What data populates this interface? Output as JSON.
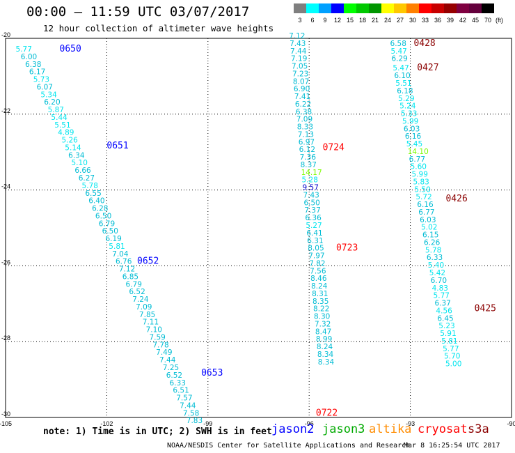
{
  "title": "00:00 – 11:59 UTC 03/07/2017",
  "subtitle": "12 hour collection of altimeter wave heights",
  "legend": {
    "swatches": [
      {
        "label": "3",
        "color": "#7f7f7f"
      },
      {
        "label": "6",
        "color": "#00ffff"
      },
      {
        "label": "9",
        "color": "#00a0ff"
      },
      {
        "label": "12",
        "color": "#0000ff"
      },
      {
        "label": "15",
        "color": "#00ff00"
      },
      {
        "label": "18",
        "color": "#00c800"
      },
      {
        "label": "21",
        "color": "#009600"
      },
      {
        "label": "24",
        "color": "#ffff00"
      },
      {
        "label": "27",
        "color": "#ffc800"
      },
      {
        "label": "30",
        "color": "#ff8000"
      },
      {
        "label": "33",
        "color": "#ff0000"
      },
      {
        "label": "36",
        "color": "#c80000"
      },
      {
        "label": "39",
        "color": "#960000"
      },
      {
        "label": "42",
        "color": "#7f0040"
      },
      {
        "label": "45",
        "color": "#64003c"
      },
      {
        "label": "70",
        "color": "#000000"
      }
    ],
    "unit": "(ft)"
  },
  "axes": {
    "x_ticks": [
      "-105",
      "-102",
      "-99",
      "-96",
      "-93",
      "-90"
    ],
    "y_ticks": [
      "-20",
      "-22",
      "-24",
      "-26",
      "-28",
      "-30"
    ]
  },
  "tracks": [
    {
      "satellite": "jason2",
      "labels": [
        {
          "lon": -103.4,
          "lat": -20.35,
          "text": "0650",
          "color": "#0000ff"
        },
        {
          "lon": -102.0,
          "lat": -22.9,
          "text": "0651",
          "color": "#0000ff"
        },
        {
          "lon": -101.1,
          "lat": -25.95,
          "text": "0652",
          "color": "#0000ff"
        },
        {
          "lon": -99.2,
          "lat": -28.9,
          "text": "0653",
          "color": "#0000ff"
        }
      ],
      "points": [
        [
          "5.77",
          -104.7,
          -20.35
        ],
        [
          "6.00",
          -104.55,
          -20.55
        ],
        [
          "6.38",
          -104.42,
          -20.75
        ],
        [
          "6.17",
          -104.3,
          -20.95
        ],
        [
          "5.73",
          -104.18,
          -21.15
        ],
        [
          "6.07",
          -104.08,
          -21.35
        ],
        [
          "5.34",
          -103.96,
          -21.55
        ],
        [
          "6.20",
          -103.86,
          -21.75
        ],
        [
          "5.87",
          -103.75,
          -21.95
        ],
        [
          "5.44",
          -103.65,
          -22.15
        ],
        [
          "5.51",
          -103.55,
          -22.35
        ],
        [
          "4.89",
          -103.45,
          -22.55
        ],
        [
          "5.26",
          -103.34,
          -22.75
        ],
        [
          "5.14",
          -103.24,
          -22.95
        ],
        [
          "6.34",
          -103.14,
          -23.15
        ],
        [
          "5.10",
          -103.05,
          -23.35
        ],
        [
          "6.66",
          -102.95,
          -23.55
        ],
        [
          "6.27",
          -102.84,
          -23.75
        ],
        [
          "5.78",
          -102.74,
          -23.95
        ],
        [
          "6.55",
          -102.64,
          -24.15
        ],
        [
          "6.40",
          -102.54,
          -24.35
        ],
        [
          "6.28",
          -102.44,
          -24.55
        ],
        [
          "6.50",
          -102.34,
          -24.75
        ],
        [
          "6.79",
          -102.24,
          -24.95
        ],
        [
          "6.50",
          -102.14,
          -25.15
        ],
        [
          "6.19",
          -102.04,
          -25.35
        ],
        [
          "5.81",
          -101.94,
          -25.55
        ],
        [
          "7.04",
          -101.84,
          -25.75
        ],
        [
          "6.76",
          -101.74,
          -25.95
        ],
        [
          "7.12",
          -101.64,
          -26.15
        ],
        [
          "6.85",
          -101.54,
          -26.35
        ],
        [
          "6.79",
          -101.44,
          -26.55
        ],
        [
          "6.52",
          -101.34,
          -26.75
        ],
        [
          "7.24",
          -101.24,
          -26.95
        ],
        [
          "7.09",
          -101.14,
          -27.15
        ],
        [
          "7.85",
          -101.04,
          -27.35
        ],
        [
          "7.11",
          -100.94,
          -27.55
        ],
        [
          "7.10",
          -100.84,
          -27.75
        ],
        [
          "7.59",
          -100.74,
          -27.95
        ],
        [
          "7.78",
          -100.64,
          -28.15
        ],
        [
          "7.49",
          -100.54,
          -28.35
        ],
        [
          "7.44",
          -100.44,
          -28.55
        ],
        [
          "7.25",
          -100.34,
          -28.75
        ],
        [
          "6.52",
          -100.24,
          -28.95
        ],
        [
          "6.33",
          -100.14,
          -29.15
        ],
        [
          "6.51",
          -100.04,
          -29.35
        ],
        [
          "7.57",
          -99.94,
          -29.55
        ],
        [
          "7.44",
          -99.84,
          -29.75
        ],
        [
          "7.58",
          -99.74,
          -29.95
        ],
        [
          "7.83",
          -99.64,
          -30.15
        ]
      ]
    },
    {
      "satellite": "jason2b",
      "labels": [
        {
          "lon": -95.6,
          "lat": -22.95,
          "text": "0724",
          "color": "#ff0000"
        },
        {
          "lon": -95.2,
          "lat": -25.6,
          "text": "0723",
          "color": "#ff0000"
        },
        {
          "lon": -95.8,
          "lat": -29.95,
          "text": "0722",
          "color": "#ff0000"
        }
      ],
      "points": [
        [
          "7.12",
          -96.6,
          -20.0
        ],
        [
          "7.43",
          -96.58,
          -20.2
        ],
        [
          "7.44",
          -96.56,
          -20.4
        ],
        [
          "7.19",
          -96.54,
          -20.6
        ],
        [
          "7.05",
          -96.52,
          -20.8
        ],
        [
          "7.23",
          -96.5,
          -21.0
        ],
        [
          "8.07",
          -96.48,
          -21.2
        ],
        [
          "6.90",
          -96.46,
          -21.4
        ],
        [
          "7.41",
          -96.44,
          -21.6
        ],
        [
          "6.22",
          -96.42,
          -21.8
        ],
        [
          "6.38",
          -96.4,
          -22.0
        ],
        [
          "7.09",
          -96.38,
          -22.2
        ],
        [
          "8.33",
          -96.36,
          -22.4
        ],
        [
          "7.13",
          -96.34,
          -22.6
        ],
        [
          "6.97",
          -96.32,
          -22.8
        ],
        [
          "6.12",
          -96.3,
          -23.0
        ],
        [
          "7.36",
          -96.28,
          -23.2
        ],
        [
          "8.37",
          -96.26,
          -23.4
        ],
        [
          "14.17",
          -96.24,
          -23.6
        ],
        [
          "5.28",
          -96.22,
          -23.8
        ],
        [
          "9.57",
          -96.2,
          -24.0
        ],
        [
          "7.43",
          -96.18,
          -24.2
        ],
        [
          "6.50",
          -96.16,
          -24.4
        ],
        [
          "7.37",
          -96.14,
          -24.6
        ],
        [
          "6.36",
          -96.12,
          -24.8
        ],
        [
          "5.27",
          -96.1,
          -25.0
        ],
        [
          "6.41",
          -96.08,
          -25.2
        ],
        [
          "6.31",
          -96.06,
          -25.4
        ],
        [
          "8.05",
          -96.04,
          -25.6
        ],
        [
          "7.97",
          -96.02,
          -25.8
        ],
        [
          "7.82",
          -96.0,
          -26.0
        ],
        [
          "7.56",
          -95.98,
          -26.2
        ],
        [
          "8.46",
          -95.96,
          -26.4
        ],
        [
          "8.24",
          -95.94,
          -26.6
        ],
        [
          "8.31",
          -95.92,
          -26.8
        ],
        [
          "8.35",
          -95.9,
          -27.0
        ],
        [
          "8.22",
          -95.88,
          -27.2
        ],
        [
          "8.30",
          -95.86,
          -27.4
        ],
        [
          "7.32",
          -95.84,
          -27.6
        ],
        [
          "8.47",
          -95.82,
          -27.8
        ],
        [
          "8.99",
          -95.8,
          -28.0
        ],
        [
          "8.24",
          -95.78,
          -28.2
        ],
        [
          "8.34",
          -95.76,
          -28.4
        ],
        [
          "8.34",
          -95.74,
          -28.6
        ]
      ]
    },
    {
      "satellite": "cryosat",
      "labels": [
        {
          "lon": -92.9,
          "lat": -20.2,
          "text": "0428",
          "color": "#8b0000"
        },
        {
          "lon": -92.8,
          "lat": -20.85,
          "text": "0427",
          "color": "#8b0000"
        },
        {
          "lon": -91.95,
          "lat": -24.3,
          "text": "0426",
          "color": "#8b0000"
        },
        {
          "lon": -91.1,
          "lat": -27.2,
          "text": "0425",
          "color": "#8b0000"
        }
      ],
      "points": [
        [
          "6.58",
          -93.6,
          -20.2
        ],
        [
          "5.47",
          -93.58,
          -20.4
        ],
        [
          "6.29",
          -93.56,
          -20.6
        ],
        [
          "5.47",
          -93.52,
          -20.85
        ],
        [
          "6.10",
          -93.48,
          -21.05
        ],
        [
          "5.51",
          -93.44,
          -21.25
        ],
        [
          "6.18",
          -93.4,
          -21.45
        ],
        [
          "5.29",
          -93.36,
          -21.65
        ],
        [
          "5.24",
          -93.32,
          -21.85
        ],
        [
          "5.33",
          -93.28,
          -22.05
        ],
        [
          "5.99",
          -93.24,
          -22.25
        ],
        [
          "6.03",
          -93.2,
          -22.45
        ],
        [
          "6.16",
          -93.16,
          -22.65
        ],
        [
          "5.45",
          -93.12,
          -22.85
        ],
        [
          "14.10",
          -93.08,
          -23.05
        ],
        [
          "6.77",
          -93.04,
          -23.25
        ],
        [
          "5.60",
          -93.0,
          -23.45
        ],
        [
          "5.99",
          -92.96,
          -23.65
        ],
        [
          "5.83",
          -92.92,
          -23.85
        ],
        [
          "5.50",
          -92.88,
          -24.05
        ],
        [
          "5.72",
          -92.84,
          -24.25
        ],
        [
          "6.16",
          -92.8,
          -24.45
        ],
        [
          "6.77",
          -92.76,
          -24.65
        ],
        [
          "6.03",
          -92.72,
          -24.85
        ],
        [
          "5.02",
          -92.68,
          -25.05
        ],
        [
          "6.15",
          -92.64,
          -25.25
        ],
        [
          "6.26",
          -92.6,
          -25.45
        ],
        [
          "5.78",
          -92.56,
          -25.65
        ],
        [
          "6.33",
          -92.52,
          -25.85
        ],
        [
          "5.40",
          -92.48,
          -26.05
        ],
        [
          "5.42",
          -92.44,
          -26.25
        ],
        [
          "6.70",
          -92.4,
          -26.45
        ],
        [
          "4.83",
          -92.36,
          -26.65
        ],
        [
          "5.77",
          -92.32,
          -26.85
        ],
        [
          "6.37",
          -92.28,
          -27.05
        ],
        [
          "4.56",
          -92.24,
          -27.25
        ],
        [
          "6.45",
          -92.2,
          -27.45
        ],
        [
          "5.23",
          -92.16,
          -27.65
        ],
        [
          "5.91",
          -92.12,
          -27.85
        ],
        [
          "5.81",
          -92.08,
          -28.05
        ],
        [
          "5.77",
          -92.04,
          -28.25
        ],
        [
          "5.70",
          -92.0,
          -28.45
        ],
        [
          "5.00",
          -91.96,
          -28.65
        ]
      ]
    }
  ],
  "note": "note: 1) Time is in UTC; 2) SWH is in feet",
  "satellites": [
    {
      "name": "jason2",
      "color": "#0000ff"
    },
    {
      "name": "jason3",
      "color": "#00aa00"
    },
    {
      "name": "altika",
      "color": "#ff8c00"
    },
    {
      "name": "cryosat",
      "color": "#ff0000"
    },
    {
      "name": "s3a",
      "color": "#8b0000"
    }
  ],
  "footer_org": "NOAA/NESDIS Center for Satellite Applications and Research",
  "footer_time": "Mar  8 16:25:54 UTC 2017"
}
